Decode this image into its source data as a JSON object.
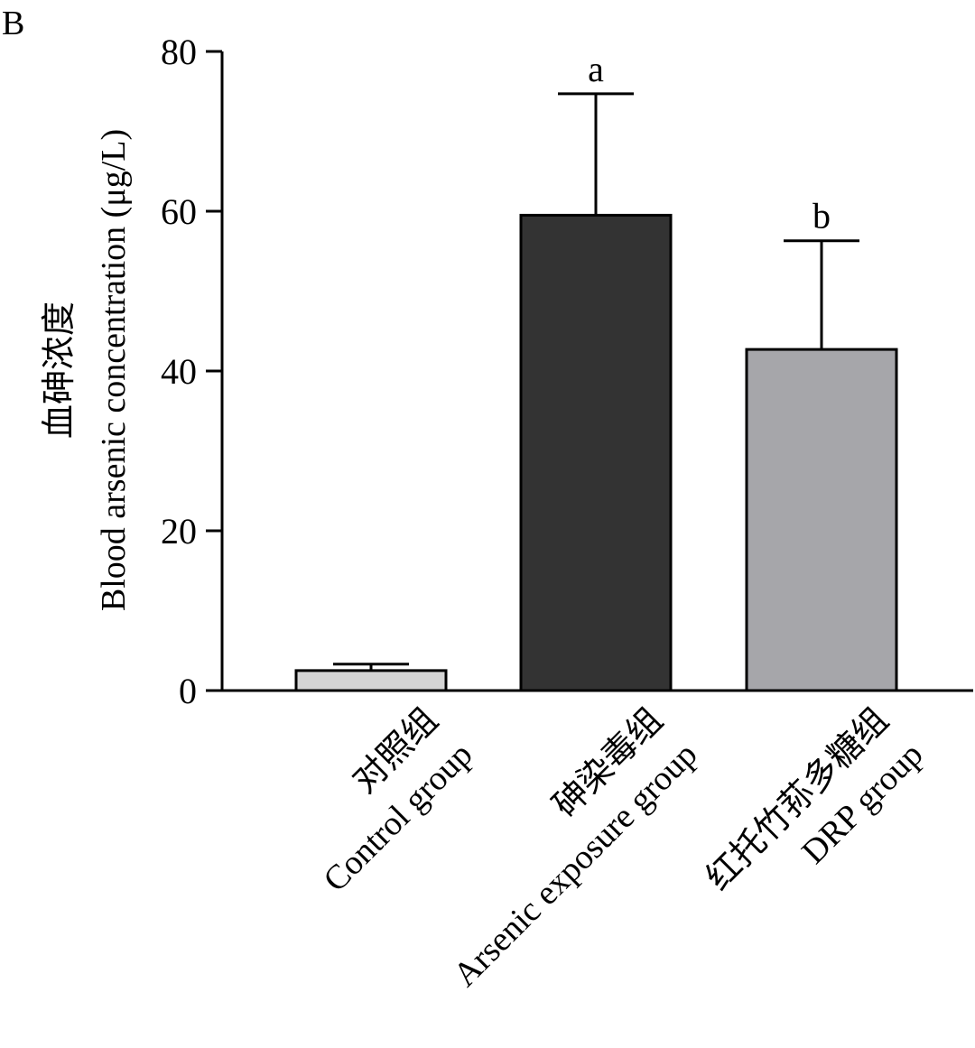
{
  "panel_label": "B",
  "chart_data": {
    "type": "bar",
    "title": "",
    "ylabel_cn": "血砷浓度",
    "ylabel_en": "Blood arsenic concentration (μg/L)",
    "ylim": [
      0,
      80
    ],
    "yticks": [
      0,
      20,
      40,
      60,
      80
    ],
    "categories": [
      {
        "cn": "对照组",
        "en": "Control group"
      },
      {
        "cn": "砷染毒组",
        "en": "Arsenic exposure group"
      },
      {
        "cn": "红托竹荪多糖组",
        "en": "DRP group"
      }
    ],
    "values": [
      2.5,
      59.5,
      42.7
    ],
    "errors": [
      0.8,
      15.2,
      13.6
    ],
    "significance": [
      "",
      "a",
      "b"
    ],
    "colors": [
      "#d4d4d4",
      "#333333",
      "#a6a6aa"
    ]
  }
}
